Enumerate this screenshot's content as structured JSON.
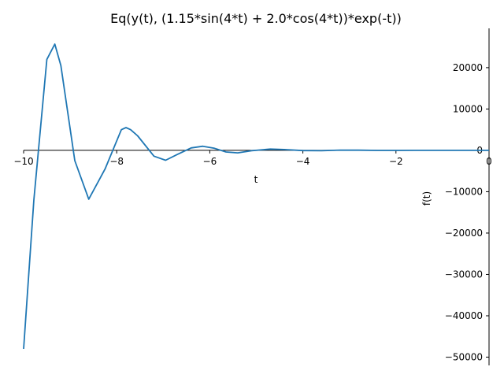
{
  "chart_data": {
    "type": "line",
    "title": "Eq(y(t), (1.15*sin(4*t) + 2.0*cos(4*t))*exp(-t))",
    "xlabel": "t",
    "ylabel": "f(t)",
    "xlim": [
      -10,
      0
    ],
    "ylim": [
      -52000,
      29500
    ],
    "xticks": [
      -10,
      -8,
      -6,
      -4,
      -2,
      0
    ],
    "xtick_labels": [
      "−10",
      "−8",
      "−6",
      "−4",
      "−2",
      "0"
    ],
    "yticks": [
      -50000,
      -40000,
      -30000,
      -20000,
      -10000,
      0,
      10000,
      20000
    ],
    "ytick_labels": [
      "−50000",
      "−40000",
      "−30000",
      "−20000",
      "−10000",
      "0",
      "10000",
      "20000"
    ],
    "grid": false,
    "color": "#1f77b4",
    "series": [
      {
        "x": [
          -10.0,
          -9.78,
          -9.5,
          -9.33,
          -9.2,
          -8.9,
          -8.6,
          -8.25,
          -7.9,
          -7.8,
          -7.7,
          -7.55,
          -7.2,
          -6.95,
          -6.7,
          -6.4,
          -6.15,
          -5.9,
          -5.65,
          -5.4,
          -5.1,
          -4.7,
          -4.4,
          -4.0,
          -3.6,
          -3.2,
          -2.8,
          -2.4,
          -2.0,
          -1.6,
          -1.2,
          -0.8,
          -0.4,
          0.0
        ],
        "y": [
          -48000,
          -12000,
          22000,
          25700,
          20500,
          -2500,
          -11800,
          -4500,
          5000,
          5500,
          5000,
          3500,
          -1400,
          -2400,
          -1000,
          600,
          1000,
          500,
          -400,
          -600,
          -100,
          300,
          200,
          -50,
          -100,
          60,
          40,
          -20,
          -20,
          8,
          5,
          -3,
          -2,
          2
        ]
      }
    ]
  }
}
